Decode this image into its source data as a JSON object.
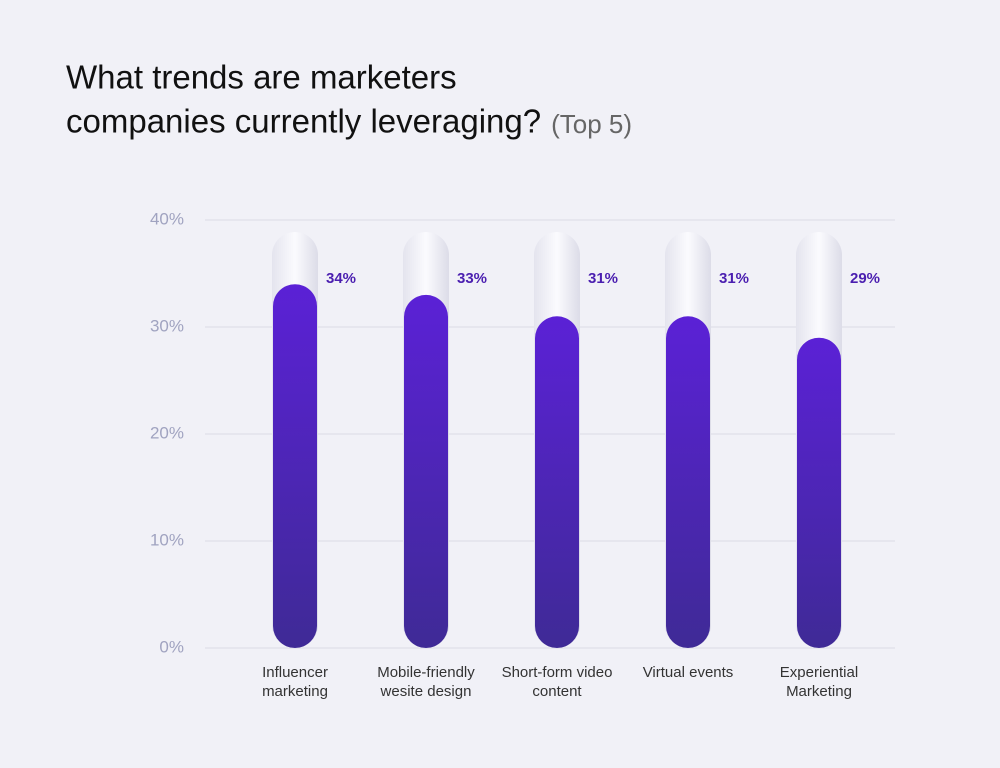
{
  "chart_data": {
    "type": "bar",
    "title_lines": [
      "What trends are marketers",
      "companies currently leveraging?"
    ],
    "subtitle": "(Top 5)",
    "categories": [
      "Influencer marketing",
      "Mobile-friendly wesite design",
      "Short-form video content",
      "Virtual events",
      "Experiential Marketing"
    ],
    "values": [
      34,
      33,
      31,
      31,
      29
    ],
    "value_labels": [
      "34%",
      "33%",
      "31%",
      "31%",
      "29%"
    ],
    "color": "#5b21d6",
    "ylim": [
      0,
      40
    ],
    "yticks": [
      {
        "value": 0,
        "label": "0%"
      },
      {
        "value": 10,
        "label": "10%"
      },
      {
        "value": 20,
        "label": "20%"
      },
      {
        "value": 30,
        "label": "30%"
      },
      {
        "value": 40,
        "label": "40%"
      }
    ],
    "grid": true
  }
}
